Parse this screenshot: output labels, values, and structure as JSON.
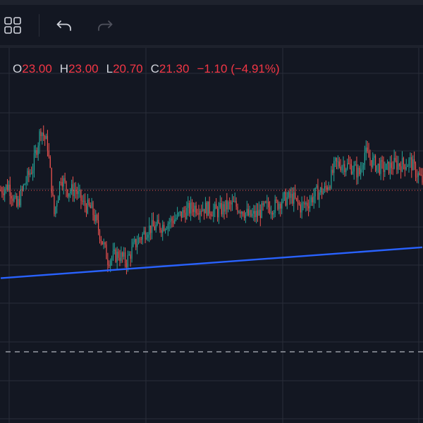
{
  "toolbar": {
    "icons": [
      "layout-grid-icon",
      "undo-icon",
      "redo-icon"
    ],
    "redo_enabled": false
  },
  "legend": {
    "open_key": "O",
    "open_value": "23.00",
    "high_key": "H",
    "high_value": "23.00",
    "low_key": "L",
    "low_value": "20.70",
    "close_key": "C",
    "close_value": "21.30",
    "change": "−1.10 (−4.91%)"
  },
  "colors": {
    "background": "#131722",
    "toolbar_background": "#1e222d",
    "grid": "#2a2e39",
    "up_candle": "#26a69a",
    "down_candle": "#ef5350",
    "trendline": "#2962ff",
    "price_line": "#ef5350",
    "dashed_line": "#b2b5be",
    "legend_text": "#d1d4dc",
    "legend_value": "#f23645",
    "icon_enabled": "#d1d4dc",
    "icon_disabled": "#50535e"
  },
  "chart_data": {
    "type": "candlestick",
    "title": "",
    "grid": true,
    "last_price_line": 21.3,
    "horizontal_dashed_line": 17.9,
    "trendline": {
      "start": [
        0,
        19.45
      ],
      "end": [
        315,
        20.1
      ]
    },
    "ylim": [
      16.4,
      24.3
    ],
    "anchors": [
      [
        0,
        21.3
      ],
      [
        6,
        21.4
      ],
      [
        12,
        20.95
      ],
      [
        18,
        21.45
      ],
      [
        24,
        21.8
      ],
      [
        30,
        22.6
      ],
      [
        35,
        22.25
      ],
      [
        40,
        20.8
      ],
      [
        45,
        21.6
      ],
      [
        50,
        21.3
      ],
      [
        56,
        21.3
      ],
      [
        62,
        21.0
      ],
      [
        68,
        20.9
      ],
      [
        74,
        20.4
      ],
      [
        80,
        19.85
      ],
      [
        88,
        19.95
      ],
      [
        94,
        19.8
      ],
      [
        100,
        20.15
      ],
      [
        110,
        20.5
      ],
      [
        120,
        20.55
      ],
      [
        130,
        20.7
      ],
      [
        138,
        20.85
      ],
      [
        144,
        20.95
      ],
      [
        150,
        20.95
      ],
      [
        156,
        20.9
      ],
      [
        162,
        20.85
      ],
      [
        168,
        20.95
      ],
      [
        174,
        21.0
      ],
      [
        180,
        20.9
      ],
      [
        186,
        20.75
      ],
      [
        192,
        20.8
      ],
      [
        198,
        20.95
      ],
      [
        204,
        20.95
      ],
      [
        210,
        21.1
      ],
      [
        218,
        21.15
      ],
      [
        224,
        20.95
      ],
      [
        230,
        21.05
      ],
      [
        236,
        21.25
      ],
      [
        242,
        21.3
      ],
      [
        246,
        21.5
      ],
      [
        250,
        21.85
      ],
      [
        256,
        21.85
      ],
      [
        262,
        21.8
      ],
      [
        268,
        21.65
      ],
      [
        272,
        22.1
      ],
      [
        276,
        21.95
      ],
      [
        282,
        21.8
      ],
      [
        288,
        21.75
      ],
      [
        294,
        21.85
      ],
      [
        300,
        21.85
      ],
      [
        306,
        21.9
      ],
      [
        310,
        21.7
      ],
      [
        315,
        21.5
      ]
    ]
  }
}
